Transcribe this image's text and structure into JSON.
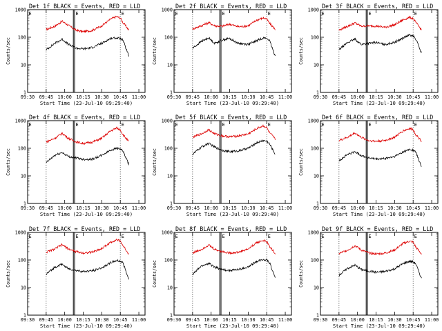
{
  "common": {
    "type": "line",
    "x_axis_title_template": "Start Time ({date} {time})",
    "start_date": "23-Jul-10",
    "start_time": "09:29:40",
    "ylabel": "Counts/sec",
    "x_ticks": [
      "09:30",
      "09:45",
      "10:00",
      "10:15",
      "10:30",
      "10:45",
      "11:00"
    ],
    "x_range_minutes_after_0930": [
      0,
      95
    ],
    "y_scale": "log",
    "y_ticks": [
      "1",
      "10",
      "100",
      "1000"
    ],
    "ylim": [
      1,
      1000
    ],
    "series_colors": {
      "Events": "#000000",
      "LLD": "#dd0000"
    },
    "annotation_marker": "E",
    "vertical_dotted_lines": [
      "09:45",
      "10:45"
    ],
    "vertical_solid_lines_approx": [
      "10:07",
      "10:08"
    ]
  },
  "chart_data": [
    {
      "title": "Det 1f BLACK = Events, RED = LLD",
      "x_time": [
        "09:45",
        "09:52",
        "09:58",
        "10:03",
        "10:09",
        "10:15",
        "10:22",
        "10:30",
        "10:37",
        "10:42",
        "10:45",
        "10:47",
        "10:52"
      ],
      "series": [
        {
          "name": "LLD",
          "color": "#dd0000",
          "values": [
            190,
            250,
            380,
            270,
            180,
            160,
            175,
            260,
            450,
            560,
            500,
            350,
            180
          ]
        },
        {
          "name": "Events",
          "color": "#000000",
          "values": [
            35,
            60,
            85,
            55,
            40,
            38,
            42,
            60,
            90,
            95,
            90,
            80,
            20
          ]
        }
      ]
    },
    {
      "title": "Det 2f BLACK = Events, RED = LLD",
      "x_time": [
        "09:45",
        "09:52",
        "09:58",
        "10:03",
        "10:09",
        "10:15",
        "10:22",
        "10:30",
        "10:37",
        "10:42",
        "10:45",
        "10:47",
        "10:52"
      ],
      "series": [
        {
          "name": "LLD",
          "color": "#dd0000",
          "values": [
            200,
            260,
            340,
            260,
            250,
            300,
            240,
            260,
            420,
            500,
            460,
            330,
            190
          ]
        },
        {
          "name": "Events",
          "color": "#000000",
          "values": [
            40,
            70,
            95,
            60,
            80,
            90,
            60,
            55,
            75,
            95,
            90,
            80,
            20
          ]
        }
      ]
    },
    {
      "title": "Det 3f BLACK = Events, RED = LLD",
      "x_time": [
        "09:45",
        "09:52",
        "09:58",
        "10:03",
        "10:09",
        "10:15",
        "10:22",
        "10:30",
        "10:37",
        "10:42",
        "10:45",
        "10:47",
        "10:52"
      ],
      "series": [
        {
          "name": "LLD",
          "color": "#dd0000",
          "values": [
            180,
            250,
            330,
            250,
            260,
            255,
            230,
            280,
            430,
            520,
            480,
            350,
            180
          ]
        },
        {
          "name": "Events",
          "color": "#000000",
          "values": [
            35,
            65,
            85,
            55,
            60,
            65,
            55,
            65,
            95,
            120,
            110,
            90,
            25
          ]
        }
      ]
    },
    {
      "title": "Det 4f BLACK = Events, RED = LLD",
      "x_time": [
        "09:45",
        "09:52",
        "09:58",
        "10:03",
        "10:09",
        "10:15",
        "10:22",
        "10:30",
        "10:37",
        "10:42",
        "10:45",
        "10:47",
        "10:52"
      ],
      "series": [
        {
          "name": "LLD",
          "color": "#dd0000",
          "values": [
            170,
            230,
            350,
            230,
            170,
            150,
            165,
            230,
            420,
            540,
            470,
            320,
            170
          ]
        },
        {
          "name": "Events",
          "color": "#000000",
          "values": [
            30,
            55,
            70,
            50,
            45,
            40,
            40,
            55,
            85,
            100,
            95,
            80,
            25
          ]
        }
      ]
    },
    {
      "title": "Det 5f BLACK = Events, RED = LLD",
      "x_time": [
        "09:45",
        "09:52",
        "09:58",
        "10:03",
        "10:09",
        "10:15",
        "10:22",
        "10:30",
        "10:37",
        "10:42",
        "10:45",
        "10:47",
        "10:52"
      ],
      "series": [
        {
          "name": "LLD",
          "color": "#dd0000",
          "values": [
            250,
            330,
            470,
            330,
            280,
            260,
            280,
            330,
            520,
            650,
            560,
            380,
            210
          ]
        },
        {
          "name": "Events",
          "color": "#000000",
          "values": [
            60,
            110,
            150,
            110,
            85,
            75,
            80,
            100,
            160,
            190,
            180,
            150,
            60
          ]
        }
      ]
    },
    {
      "title": "Det 6f BLACK = Events, RED = LLD",
      "x_time": [
        "09:45",
        "09:52",
        "09:58",
        "10:03",
        "10:09",
        "10:15",
        "10:22",
        "10:30",
        "10:37",
        "10:42",
        "10:45",
        "10:47",
        "10:52"
      ],
      "series": [
        {
          "name": "LLD",
          "color": "#dd0000",
          "values": [
            190,
            250,
            360,
            250,
            190,
            180,
            190,
            250,
            430,
            520,
            470,
            320,
            180
          ]
        },
        {
          "name": "Events",
          "color": "#000000",
          "values": [
            35,
            60,
            75,
            55,
            45,
            40,
            42,
            50,
            75,
            90,
            85,
            75,
            20
          ]
        }
      ]
    },
    {
      "title": "Det 7f BLACK = Events, RED = LLD",
      "x_time": [
        "09:45",
        "09:52",
        "09:58",
        "10:03",
        "10:09",
        "10:15",
        "10:22",
        "10:30",
        "10:37",
        "10:42",
        "10:45",
        "10:47",
        "10:52"
      ],
      "series": [
        {
          "name": "LLD",
          "color": "#dd0000",
          "values": [
            190,
            250,
            360,
            250,
            200,
            180,
            190,
            260,
            430,
            550,
            480,
            340,
            160
          ]
        },
        {
          "name": "Events",
          "color": "#000000",
          "values": [
            30,
            55,
            70,
            48,
            42,
            38,
            40,
            52,
            80,
            95,
            90,
            80,
            20
          ]
        }
      ]
    },
    {
      "title": "Det 8f BLACK = Events, RED = LLD",
      "x_time": [
        "09:45",
        "09:52",
        "09:58",
        "10:03",
        "10:09",
        "10:15",
        "10:22",
        "10:30",
        "10:37",
        "10:42",
        "10:45",
        "10:47",
        "10:52"
      ],
      "series": [
        {
          "name": "LLD",
          "color": "#dd0000",
          "values": [
            180,
            240,
            350,
            240,
            200,
            180,
            190,
            250,
            430,
            510,
            460,
            320,
            170
          ]
        },
        {
          "name": "Events",
          "color": "#000000",
          "values": [
            30,
            60,
            75,
            55,
            45,
            42,
            45,
            55,
            90,
            105,
            100,
            85,
            22
          ]
        }
      ]
    },
    {
      "title": "Det 9f BLACK = Events, RED = LLD",
      "x_time": [
        "09:45",
        "09:52",
        "09:58",
        "10:03",
        "10:09",
        "10:15",
        "10:22",
        "10:30",
        "10:37",
        "10:42",
        "10:45",
        "10:47",
        "10:52"
      ],
      "series": [
        {
          "name": "LLD",
          "color": "#dd0000",
          "values": [
            170,
            230,
            330,
            230,
            180,
            165,
            175,
            230,
            400,
            480,
            440,
            300,
            160
          ]
        },
        {
          "name": "Events",
          "color": "#000000",
          "values": [
            28,
            50,
            65,
            45,
            40,
            36,
            38,
            48,
            75,
            90,
            85,
            75,
            20
          ]
        }
      ]
    }
  ]
}
